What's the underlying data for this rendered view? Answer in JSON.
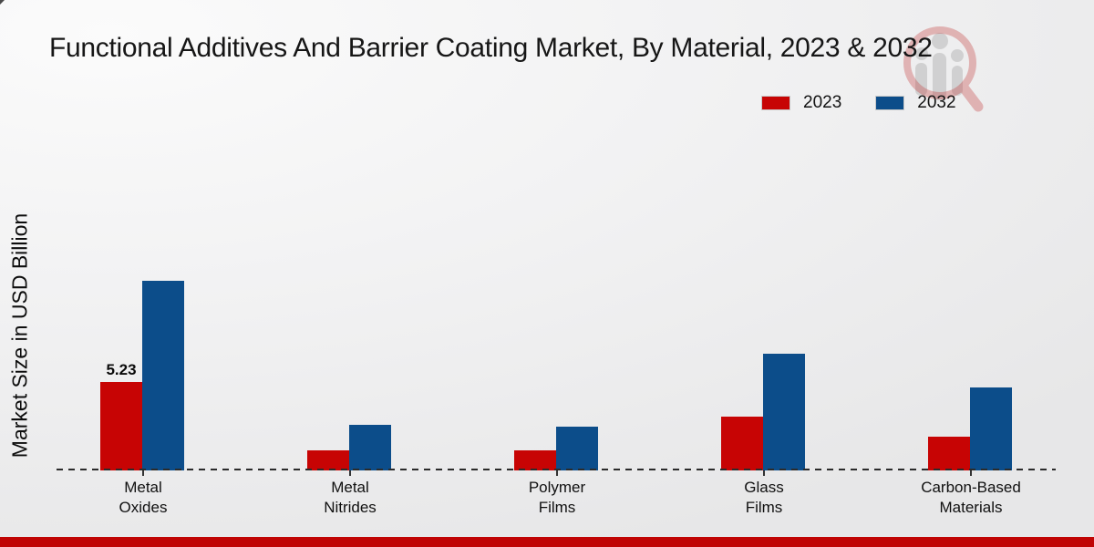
{
  "chart": {
    "title": "Functional Additives And Barrier Coating Market, By Material, 2023 & 2032"
  },
  "legend": {
    "items": [
      "2023",
      "2032"
    ]
  },
  "colors": {
    "series_2023": "#c70404",
    "series_2032": "#0c4d8a",
    "bottom_band": "#c00404",
    "baseline": "#2b2b2b"
  },
  "watermark": {
    "name": "market-research-future-logo"
  },
  "chart_data": {
    "type": "bar",
    "title": "Functional Additives And Barrier Coating Market, By Material, 2023 & 2032",
    "xlabel": "",
    "ylabel": "Market Size in USD Billion",
    "categories": [
      "Metal Oxides",
      "Metal Nitrides",
      "Polymer Films",
      "Glass Films",
      "Carbon-Based Materials"
    ],
    "series": [
      {
        "name": "2023",
        "color": "#c70404",
        "values": [
          5.23,
          1.2,
          1.2,
          3.2,
          2.0
        ]
      },
      {
        "name": "2032",
        "color": "#0c4d8a",
        "values": [
          11.2,
          2.7,
          2.6,
          6.9,
          4.9
        ]
      }
    ],
    "annotations": [
      {
        "series_index": 0,
        "category_index": 0,
        "text": "5.23"
      }
    ],
    "ylim": [
      0,
      12
    ],
    "baseline_value": 0,
    "grid": false,
    "legend_position": "top-right",
    "bar_value_labels_shown": "only 2023 Metal Oxides"
  }
}
